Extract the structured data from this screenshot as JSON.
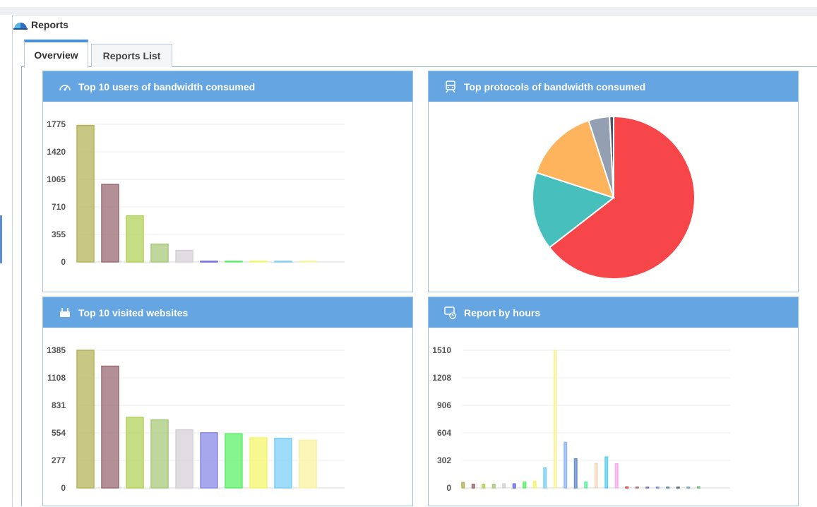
{
  "header": {
    "title": "Reports"
  },
  "tabs": [
    {
      "label": "Overview",
      "active": true
    },
    {
      "label": "Reports List",
      "active": false
    }
  ],
  "colors": {
    "header_blue": "#65a5e2",
    "tab_accent": "#4a90d9"
  },
  "cards": {
    "users": {
      "title": "Top 10 users of bandwidth consumed",
      "icon": "speedometer-icon"
    },
    "protocols": {
      "title": "Top protocols of bandwidth consumed",
      "icon": "train-icon"
    },
    "websites": {
      "title": "Top 10 visited websites",
      "icon": "router-icon"
    },
    "hours": {
      "title": "Report by hours",
      "icon": "clock-report-icon"
    }
  },
  "chart_data": [
    {
      "id": "users",
      "type": "bar",
      "title": "Top 10 users of bandwidth consumed",
      "yticks": [
        "0",
        "355",
        "710",
        "1065",
        "1420",
        "1775"
      ],
      "ylim": [
        0,
        1775
      ],
      "values": [
        1760,
        1000,
        595,
        230,
        150,
        8,
        7,
        6,
        5,
        4
      ],
      "colors": [
        "#b5b45a",
        "#9a6b72",
        "#b3d25a",
        "#a9c97a",
        "#d6d0d8",
        "#6f6fe0",
        "#5ef06a",
        "#f5f56c",
        "#7ecff5",
        "#f8f3a0"
      ],
      "grid": true
    },
    {
      "id": "protocols",
      "type": "pie",
      "title": "Top protocols of bandwidth consumed",
      "values": [
        64.5,
        15.5,
        15.0,
        4.2,
        0.8
      ],
      "colors": [
        "#f7464a",
        "#46bfbd",
        "#fdb45c",
        "#949fb1",
        "#4d5360"
      ]
    },
    {
      "id": "websites",
      "type": "bar",
      "title": "Top 10 visited websites",
      "yticks": [
        "0",
        "277",
        "554",
        "831",
        "1108",
        "1385"
      ],
      "ylim": [
        0,
        1385
      ],
      "values": [
        1385,
        1225,
        710,
        685,
        585,
        555,
        545,
        505,
        500,
        480
      ],
      "colors": [
        "#b5b45a",
        "#9a6b72",
        "#b3d25a",
        "#a9c97a",
        "#d6d0d8",
        "#8a8ae8",
        "#5ef06a",
        "#f5f56c",
        "#7ecff5",
        "#f8f3a0"
      ],
      "grid": true
    },
    {
      "id": "hours",
      "type": "bar",
      "title": "Report by hours",
      "yticks": [
        "0",
        "302",
        "604",
        "906",
        "1208",
        "1510"
      ],
      "ylim": [
        0,
        1510
      ],
      "values": [
        60,
        40,
        40,
        40,
        45,
        45,
        65,
        70,
        220,
        1510,
        500,
        320,
        65,
        270,
        340,
        265,
        10,
        8,
        6,
        6,
        6,
        6,
        6,
        12
      ],
      "colors": [
        "#b5b45a",
        "#9a6b72",
        "#b3d25a",
        "#a9c97a",
        "#d6d0d8",
        "#6f6fe0",
        "#5ef06a",
        "#f5f56c",
        "#7ecff5",
        "#f8f3a0",
        "#8fb8f5",
        "#6a8fd0",
        "#5ef0a0",
        "#f5d8c0",
        "#5fd0f0",
        "#f5b0f0",
        "#d04a4a",
        "#b07070",
        "#7a6fd0",
        "#6f8fe0",
        "#4f8fa0",
        "#4f5f70",
        "#6a9fd0",
        "#6fc07a"
      ],
      "grid": true
    }
  ]
}
